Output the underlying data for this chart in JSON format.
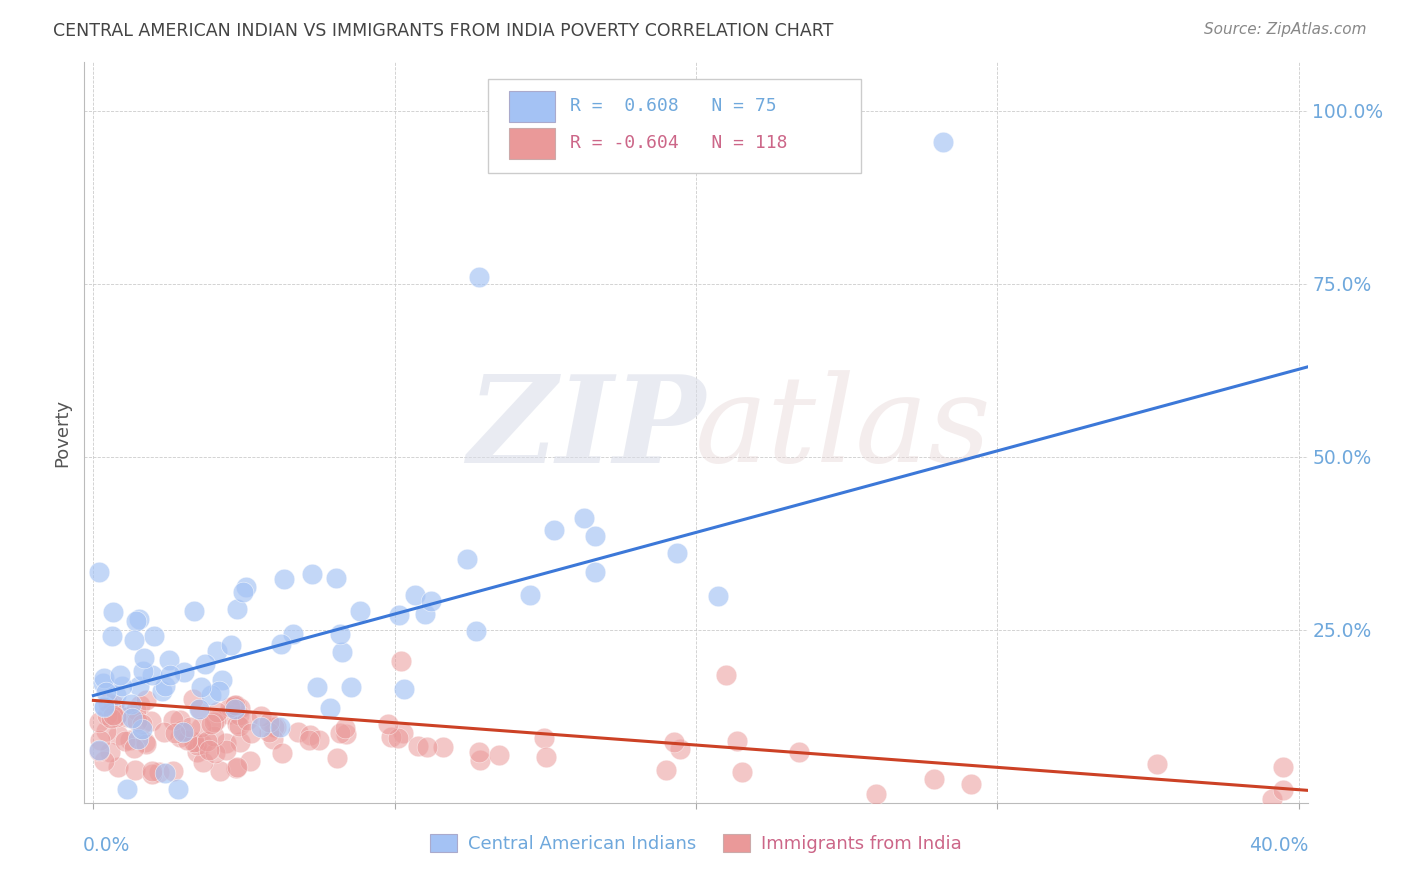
{
  "title": "CENTRAL AMERICAN INDIAN VS IMMIGRANTS FROM INDIA POVERTY CORRELATION CHART",
  "source": "Source: ZipAtlas.com",
  "ylabel": "Poverty",
  "ytick_labels": [
    "",
    "25.0%",
    "50.0%",
    "75.0%",
    "100.0%"
  ],
  "ytick_values": [
    0.0,
    0.25,
    0.5,
    0.75,
    1.0
  ],
  "xlim": [
    -0.003,
    0.403
  ],
  "ylim": [
    0.0,
    1.07
  ],
  "watermark_zip": "ZIP",
  "watermark_atlas": "atlas",
  "legend1_r": " 0.608",
  "legend1_n": "75",
  "legend2_r": "-0.604",
  "legend2_n": "118",
  "blue_color": "#a4c2f4",
  "blue_fill": "#a4c2f4",
  "pink_color": "#ea9999",
  "pink_fill": "#ea9999",
  "blue_line_color": "#3c78d8",
  "pink_line_color": "#cc4125",
  "bg_color": "#ffffff",
  "grid_color": "#cccccc",
  "axis_color": "#6fa8dc",
  "title_color": "#444444",
  "blue_trend_x": [
    0.0,
    0.403
  ],
  "blue_trend_y": [
    0.155,
    0.63
  ],
  "pink_trend_x": [
    0.0,
    0.403
  ],
  "pink_trend_y": [
    0.148,
    0.018
  ]
}
